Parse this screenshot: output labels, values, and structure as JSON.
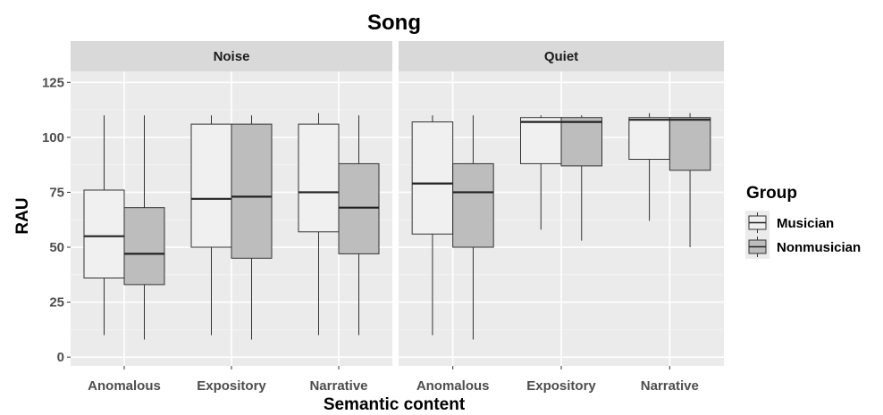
{
  "chart_data": {
    "type": "boxplot",
    "title": "Song",
    "xlabel": "Semantic content",
    "ylabel": "RAU",
    "ylim": [
      -4,
      130
    ],
    "yticks": [
      0,
      25,
      50,
      75,
      100,
      125
    ],
    "categories": [
      "Anomalous",
      "Expository",
      "Narrative"
    ],
    "grid": true,
    "legend": {
      "title": "Group",
      "position": "right",
      "entries": [
        {
          "name": "Musician",
          "color": "#f0f0f0"
        },
        {
          "name": "Nonmusician",
          "color": "#bdbdbd"
        }
      ]
    },
    "panels": [
      {
        "name": "Noise",
        "series": [
          {
            "name": "Musician",
            "boxes": [
              {
                "category": "Anomalous",
                "min": 10,
                "q1": 36,
                "median": 55,
                "q3": 76,
                "max": 110
              },
              {
                "category": "Expository",
                "min": 10,
                "q1": 50,
                "median": 72,
                "q3": 106,
                "max": 110
              },
              {
                "category": "Narrative",
                "min": 10,
                "q1": 57,
                "median": 75,
                "q3": 106,
                "max": 111
              }
            ]
          },
          {
            "name": "Nonmusician",
            "boxes": [
              {
                "category": "Anomalous",
                "min": 8,
                "q1": 33,
                "median": 47,
                "q3": 68,
                "max": 110
              },
              {
                "category": "Expository",
                "min": 8,
                "q1": 45,
                "median": 73,
                "q3": 106,
                "max": 110
              },
              {
                "category": "Narrative",
                "min": 10,
                "q1": 47,
                "median": 68,
                "q3": 88,
                "max": 110
              }
            ]
          }
        ]
      },
      {
        "name": "Quiet",
        "series": [
          {
            "name": "Musician",
            "boxes": [
              {
                "category": "Anomalous",
                "min": 10,
                "q1": 56,
                "median": 79,
                "q3": 107,
                "max": 110
              },
              {
                "category": "Expository",
                "min": 58,
                "q1": 88,
                "median": 107,
                "q3": 109,
                "max": 110
              },
              {
                "category": "Narrative",
                "min": 62,
                "q1": 90,
                "median": 108,
                "q3": 109,
                "max": 111
              }
            ]
          },
          {
            "name": "Nonmusician",
            "boxes": [
              {
                "category": "Anomalous",
                "min": 8,
                "q1": 50,
                "median": 75,
                "q3": 88,
                "max": 110
              },
              {
                "category": "Expository",
                "min": 53,
                "q1": 87,
                "median": 107,
                "q3": 109,
                "max": 110
              },
              {
                "category": "Narrative",
                "min": 50,
                "q1": 85,
                "median": 108,
                "q3": 109,
                "max": 111
              }
            ]
          }
        ]
      }
    ]
  }
}
